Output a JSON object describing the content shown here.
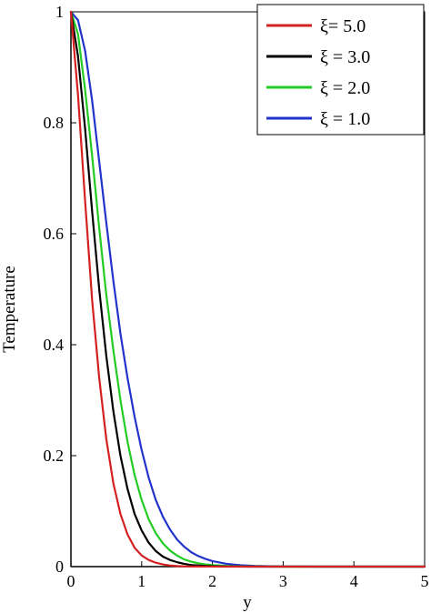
{
  "chart_data": {
    "type": "line",
    "title": "",
    "xlabel": "y",
    "ylabel": "Temperature",
    "xlim": [
      0,
      5
    ],
    "ylim": [
      0,
      1
    ],
    "xticks": [
      "0",
      "1",
      "2",
      "3",
      "4",
      "5"
    ],
    "yticks": [
      "0",
      "0.2",
      "0.4",
      "0.6",
      "0.8",
      "1"
    ],
    "grid": false,
    "legend_position": "top-right",
    "x": [
      0,
      0.1,
      0.2,
      0.3,
      0.4,
      0.5,
      0.6,
      0.7,
      0.8,
      0.9,
      1.0,
      1.1,
      1.2,
      1.3,
      1.4,
      1.5,
      1.6,
      1.7,
      1.8,
      1.9,
      2.0,
      2.2,
      2.4,
      2.6,
      2.8,
      3.0,
      3.5,
      4.0,
      4.5,
      5.0
    ],
    "series": [
      {
        "name": "ξ= 5.0",
        "color": "#d42020",
        "values": [
          1.0,
          0.85,
          0.66,
          0.48,
          0.34,
          0.23,
          0.15,
          0.095,
          0.058,
          0.034,
          0.02,
          0.012,
          0.007,
          0.004,
          0.002,
          0.001,
          0.0005,
          0.0003,
          0.0002,
          0.0001,
          0.0001,
          0,
          0,
          0,
          0,
          0,
          0,
          0,
          0,
          0
        ]
      },
      {
        "name": "ξ = 3.0",
        "color": "#000000",
        "values": [
          1.0,
          0.92,
          0.79,
          0.64,
          0.5,
          0.38,
          0.28,
          0.2,
          0.14,
          0.095,
          0.065,
          0.043,
          0.028,
          0.018,
          0.012,
          0.008,
          0.005,
          0.003,
          0.002,
          0.0012,
          0.0008,
          0.0003,
          0.0001,
          0,
          0,
          0,
          0,
          0,
          0,
          0
        ]
      },
      {
        "name": "ξ = 2.0",
        "color": "#22cc22",
        "values": [
          1.0,
          0.96,
          0.86,
          0.74,
          0.61,
          0.49,
          0.39,
          0.3,
          0.225,
          0.165,
          0.12,
          0.085,
          0.06,
          0.042,
          0.029,
          0.02,
          0.013,
          0.009,
          0.006,
          0.004,
          0.0027,
          0.0012,
          0.0005,
          0.0002,
          0.0001,
          0,
          0,
          0,
          0,
          0
        ]
      },
      {
        "name": "ξ = 1.0",
        "color": "#2233cc",
        "values": [
          1.0,
          0.985,
          0.93,
          0.84,
          0.73,
          0.62,
          0.515,
          0.42,
          0.34,
          0.27,
          0.21,
          0.16,
          0.12,
          0.09,
          0.067,
          0.049,
          0.036,
          0.026,
          0.019,
          0.014,
          0.01,
          0.005,
          0.0025,
          0.0012,
          0.0006,
          0.0003,
          0,
          0,
          0,
          0
        ]
      }
    ]
  }
}
